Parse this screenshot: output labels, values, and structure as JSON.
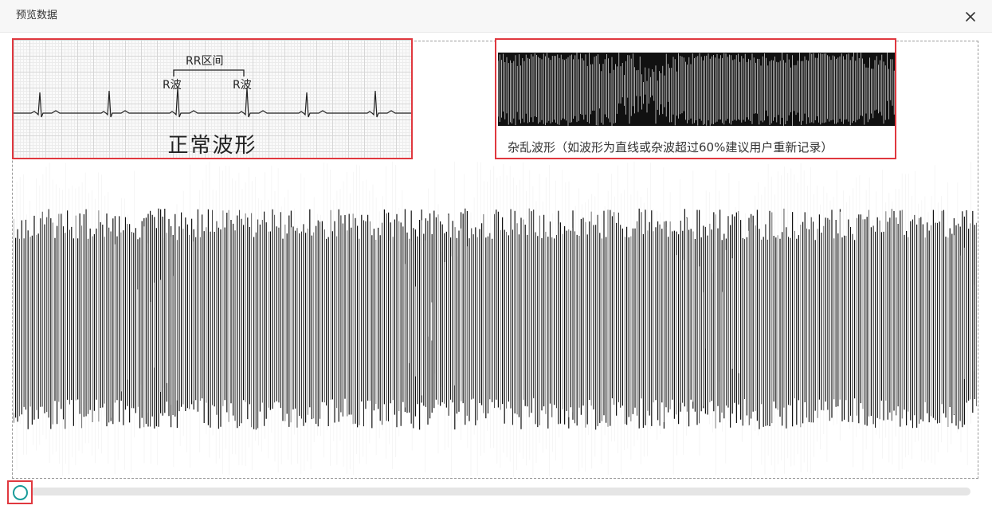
{
  "dialog": {
    "title": "预览数据",
    "close_icon": "close-icon"
  },
  "reference": {
    "normal": {
      "caption": "正常波形",
      "rr_label": "RR区间",
      "r_wave_label": "R波"
    },
    "noisy": {
      "caption": "杂乱波形（如波形为直线或杂波超过60%建议用户重新记录）"
    }
  },
  "colors": {
    "highlight": "#e0383f",
    "handle": "#1a9c9a",
    "wave": "#111111"
  },
  "scrollbar": {
    "position": 0
  }
}
